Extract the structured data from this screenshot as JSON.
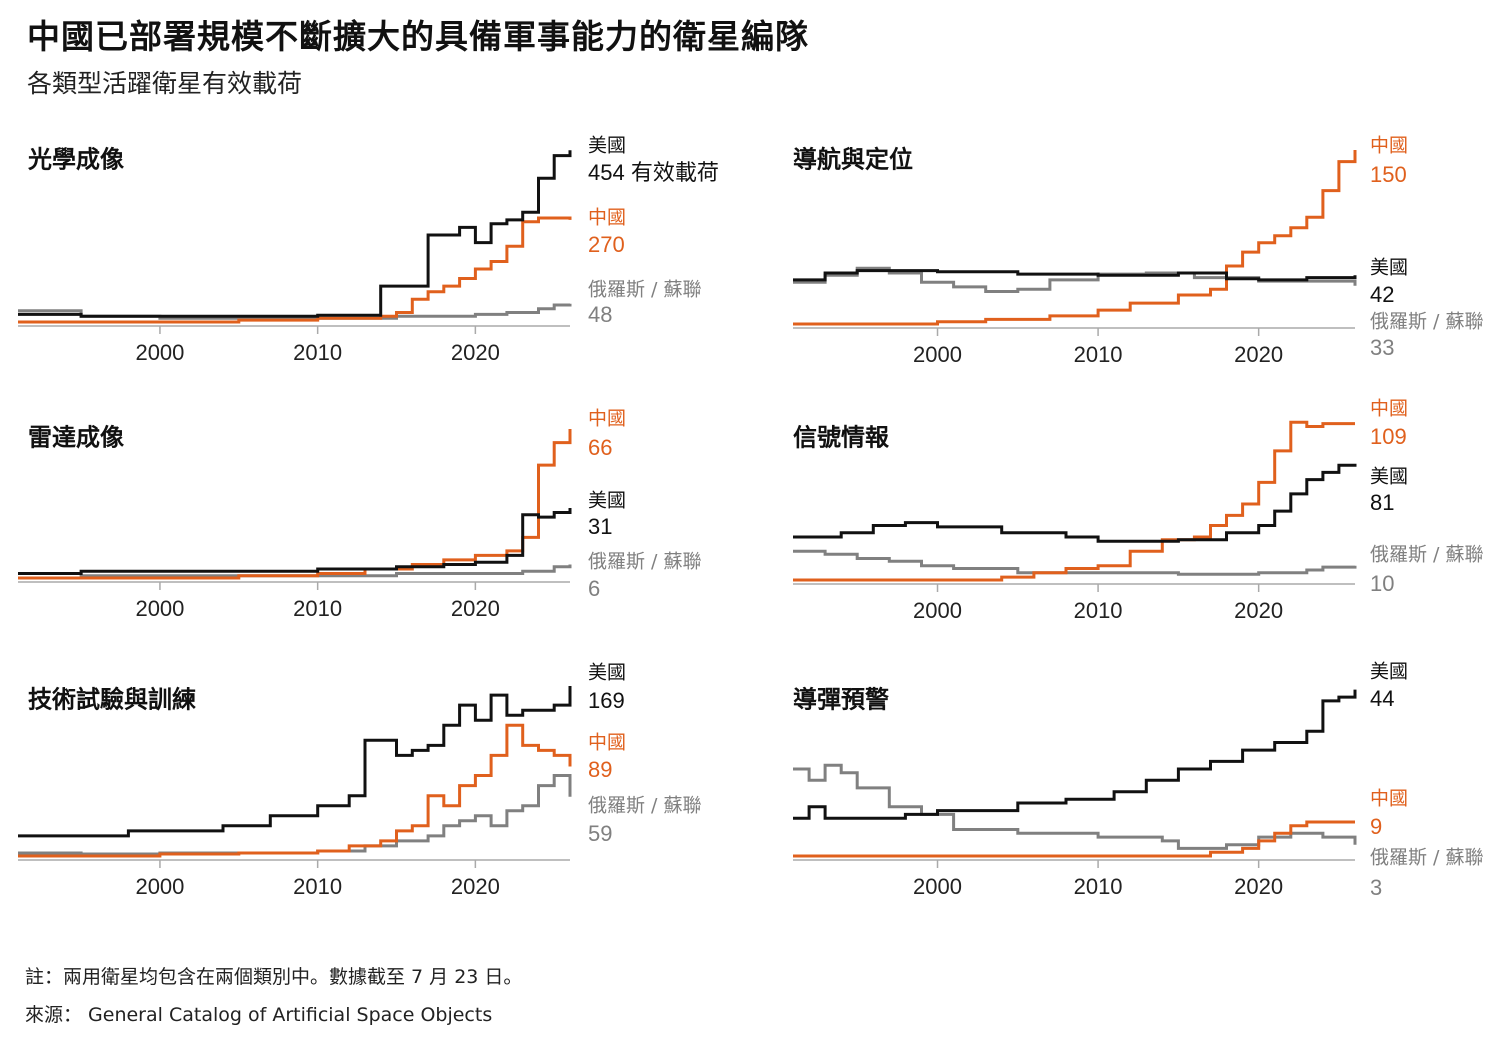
{
  "title": "中國已部署規模不斷擴大的具備軍事能力的衛星編隊",
  "subtitle": "各類型活躍衛星有效載荷",
  "note": "註：兩用衛星均包含在兩個類別中。數據截至 7 月 23 日。",
  "source": "來源： General Catalog of Artificial Space Objects",
  "colors": {
    "us": "#111111",
    "china": "#e0601d",
    "russia": "#808080",
    "baseline": "#aaaaaa"
  },
  "chart_data": [
    {
      "type": "line",
      "title": "光學成像",
      "x_range": [
        1991,
        2026
      ],
      "xticks": [
        2000,
        2010,
        2020
      ],
      "ylim": [
        0,
        460
      ],
      "series": [
        {
          "name": "美國",
          "label": "美國",
          "value_label": "454 有效載荷",
          "color": "#111111",
          "x": [
            1991,
            1995,
            2000,
            2005,
            2010,
            2014,
            2014,
            2017,
            2017,
            2019,
            2019,
            2020,
            2020,
            2021,
            2021,
            2022,
            2022,
            2023,
            2023,
            2024,
            2024,
            2025,
            2025,
            2026
          ],
          "y": [
            20,
            15,
            15,
            15,
            18,
            20,
            95,
            95,
            230,
            230,
            250,
            250,
            210,
            210,
            260,
            260,
            270,
            270,
            290,
            290,
            380,
            380,
            440,
            454
          ]
        },
        {
          "name": "中國",
          "label": "中國",
          "value_label": "270",
          "color": "#e0601d",
          "x": [
            1991,
            2005,
            2010,
            2014,
            2015,
            2016,
            2017,
            2018,
            2019,
            2020,
            2021,
            2022,
            2023,
            2024,
            2026
          ],
          "y": [
            0,
            5,
            10,
            15,
            25,
            60,
            80,
            95,
            115,
            140,
            160,
            200,
            265,
            275,
            270
          ]
        },
        {
          "name": "俄羅斯 / 蘇聯",
          "label": "俄羅斯 / 蘇聯",
          "value_label": "48",
          "color": "#808080",
          "x": [
            1991,
            1995,
            2000,
            2005,
            2010,
            2015,
            2020,
            2022,
            2024,
            2025,
            2026
          ],
          "y": [
            30,
            15,
            10,
            10,
            10,
            15,
            20,
            25,
            35,
            45,
            48
          ]
        }
      ]
    },
    {
      "type": "line",
      "title": "導航與定位",
      "x_range": [
        1991,
        2026
      ],
      "xticks": [
        2000,
        2010,
        2020
      ],
      "ylim": [
        0,
        150
      ],
      "series": [
        {
          "name": "中國",
          "label": "中國",
          "value_label": "150",
          "color": "#e0601d",
          "x": [
            1991,
            2000,
            2003,
            2007,
            2010,
            2012,
            2015,
            2017,
            2018,
            2019,
            2020,
            2021,
            2022,
            2023,
            2024,
            2025,
            2026
          ],
          "y": [
            0,
            2,
            4,
            7,
            12,
            18,
            25,
            30,
            50,
            62,
            70,
            76,
            83,
            92,
            115,
            140,
            150
          ]
        },
        {
          "name": "美國",
          "label": "美國",
          "value_label": "42",
          "color": "#111111",
          "x": [
            1991,
            1993,
            1995,
            2000,
            2005,
            2010,
            2015,
            2018,
            2020,
            2023,
            2026
          ],
          "y": [
            38,
            44,
            46,
            45,
            43,
            42,
            44,
            39,
            38,
            40,
            42
          ]
        },
        {
          "name": "俄羅斯 / 蘇聯",
          "label": "俄羅斯 / 蘇聯",
          "value_label": "33",
          "color": "#808080",
          "x": [
            1991,
            1993,
            1995,
            1997,
            1999,
            2001,
            2003,
            2005,
            2007,
            2010,
            2013,
            2016,
            2020,
            2026
          ],
          "y": [
            36,
            42,
            48,
            44,
            36,
            32,
            28,
            30,
            38,
            43,
            44,
            40,
            37,
            33
          ]
        }
      ]
    },
    {
      "type": "line",
      "title": "雷達成像",
      "x_range": [
        1991,
        2026
      ],
      "xticks": [
        2000,
        2010,
        2020
      ],
      "ylim": [
        0,
        70
      ],
      "series": [
        {
          "name": "中國",
          "label": "中國",
          "value_label": "66",
          "color": "#e0601d",
          "x": [
            1991,
            2005,
            2010,
            2013,
            2016,
            2018,
            2020,
            2022,
            2023,
            2024,
            2025,
            2026
          ],
          "y": [
            0,
            1,
            2,
            4,
            6,
            8,
            10,
            12,
            18,
            50,
            60,
            66
          ]
        },
        {
          "name": "美國",
          "label": "美國",
          "value_label": "31",
          "color": "#111111",
          "x": [
            1991,
            1995,
            2000,
            2005,
            2010,
            2015,
            2018,
            2020,
            2022,
            2023,
            2024,
            2025,
            2026
          ],
          "y": [
            2,
            3,
            3,
            3,
            4,
            5,
            6,
            7,
            10,
            28,
            27,
            29,
            31
          ]
        },
        {
          "name": "俄羅斯 / 蘇聯",
          "label": "俄羅斯 / 蘇聯",
          "value_label": "6",
          "color": "#808080",
          "x": [
            1991,
            1995,
            2000,
            2010,
            2015,
            2020,
            2023,
            2025,
            2026
          ],
          "y": [
            2,
            1,
            1,
            1,
            2,
            2,
            3,
            5,
            6
          ]
        }
      ]
    },
    {
      "type": "line",
      "title": "信號情報",
      "x_range": [
        1991,
        2026
      ],
      "xticks": [
        2000,
        2010,
        2020
      ],
      "ylim": [
        0,
        115
      ],
      "series": [
        {
          "name": "中國",
          "label": "中國",
          "value_label": "109",
          "color": "#e0601d",
          "x": [
            1991,
            2000,
            2004,
            2006,
            2008,
            2010,
            2012,
            2014,
            2016,
            2017,
            2018,
            2019,
            2020,
            2021,
            2022,
            2023,
            2024,
            2026
          ],
          "y": [
            0,
            0,
            2,
            5,
            8,
            10,
            20,
            28,
            30,
            38,
            45,
            53,
            68,
            90,
            110,
            107,
            109,
            109
          ]
        },
        {
          "name": "美國",
          "label": "美國",
          "value_label": "81",
          "color": "#111111",
          "x": [
            1991,
            1994,
            1996,
            1998,
            2000,
            2004,
            2008,
            2010,
            2015,
            2018,
            2020,
            2021,
            2022,
            2023,
            2024,
            2025,
            2026
          ],
          "y": [
            30,
            33,
            38,
            40,
            37,
            33,
            30,
            27,
            28,
            33,
            38,
            48,
            60,
            70,
            75,
            80,
            81
          ]
        },
        {
          "name": "俄羅斯 / 蘇聯",
          "label": "俄羅斯 / 蘇聯",
          "value_label": "10",
          "color": "#808080",
          "x": [
            1991,
            1993,
            1995,
            1997,
            1999,
            2001,
            2005,
            2010,
            2015,
            2020,
            2023,
            2024,
            2026
          ],
          "y": [
            20,
            18,
            15,
            13,
            10,
            8,
            5,
            5,
            4,
            5,
            7,
            9,
            10
          ]
        }
      ]
    },
    {
      "type": "line",
      "title": "技術試驗與訓練",
      "x_range": [
        1991,
        2026
      ],
      "xticks": [
        2000,
        2010,
        2020
      ],
      "ylim": [
        0,
        175
      ],
      "series": [
        {
          "name": "美國",
          "label": "美國",
          "value_label": "169",
          "color": "#111111",
          "x": [
            1991,
            1995,
            1998,
            2000,
            2004,
            2007,
            2010,
            2012,
            2013,
            2015,
            2016,
            2017,
            2018,
            2019,
            2020,
            2021,
            2022,
            2023,
            2025,
            2026
          ],
          "y": [
            20,
            20,
            25,
            25,
            30,
            40,
            50,
            60,
            115,
            100,
            105,
            110,
            130,
            150,
            135,
            160,
            140,
            145,
            150,
            169
          ]
        },
        {
          "name": "中國",
          "label": "中國",
          "value_label": "89",
          "color": "#e0601d",
          "x": [
            1991,
            2000,
            2005,
            2010,
            2012,
            2014,
            2015,
            2016,
            2017,
            2018,
            2019,
            2020,
            2021,
            2022,
            2023,
            2024,
            2025,
            2026
          ],
          "y": [
            0,
            2,
            3,
            5,
            10,
            15,
            25,
            30,
            60,
            50,
            70,
            80,
            100,
            130,
            110,
            105,
            100,
            89
          ]
        },
        {
          "name": "俄羅斯 / 蘇聯",
          "label": "俄羅斯 / 蘇聯",
          "value_label": "59",
          "color": "#808080",
          "x": [
            1991,
            1995,
            2000,
            2005,
            2010,
            2013,
            2015,
            2017,
            2018,
            2019,
            2020,
            2021,
            2022,
            2023,
            2024,
            2025,
            2026
          ],
          "y": [
            3,
            2,
            3,
            3,
            5,
            10,
            15,
            20,
            30,
            35,
            40,
            30,
            45,
            50,
            70,
            80,
            59
          ]
        }
      ]
    },
    {
      "type": "line",
      "title": "導彈預警",
      "x_range": [
        1991,
        2026
      ],
      "xticks": [
        2000,
        2010,
        2020
      ],
      "ylim": [
        0,
        46
      ],
      "series": [
        {
          "name": "美國",
          "label": "美國",
          "value_label": "44",
          "color": "#111111",
          "x": [
            1991,
            1992,
            1993,
            1995,
            1998,
            2000,
            2005,
            2008,
            2011,
            2013,
            2015,
            2017,
            2019,
            2021,
            2023,
            2024,
            2025,
            2026
          ],
          "y": [
            10,
            13,
            10,
            10,
            11,
            12,
            14,
            15,
            17,
            20,
            23,
            25,
            28,
            30,
            33,
            41,
            42,
            44
          ]
        },
        {
          "name": "中國",
          "label": "中國",
          "value_label": "9",
          "color": "#e0601d",
          "x": [
            1991,
            2010,
            2015,
            2017,
            2019,
            2020,
            2021,
            2022,
            2023,
            2026
          ],
          "y": [
            0,
            0,
            0,
            1,
            2,
            4,
            6,
            8,
            9,
            9
          ]
        },
        {
          "name": "俄羅斯 / 蘇聯",
          "label": "俄羅斯 / 蘇聯",
          "value_label": "3",
          "color": "#808080",
          "x": [
            1991,
            1992,
            1993,
            1994,
            1995,
            1997,
            1999,
            2001,
            2005,
            2010,
            2014,
            2015,
            2018,
            2020,
            2022,
            2024,
            2026
          ],
          "y": [
            23,
            20,
            24,
            22,
            18,
            13,
            11,
            7,
            6,
            5,
            4,
            2,
            3,
            5,
            6,
            5,
            3
          ]
        }
      ]
    }
  ]
}
